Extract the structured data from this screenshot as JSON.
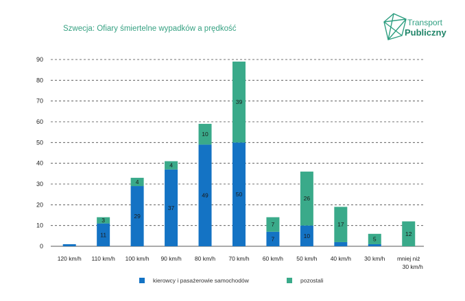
{
  "title": "Szwecja: Ofiary śmiertelne wypadków a prędkość",
  "logo": {
    "line1": "Transport",
    "line2": "Publiczny"
  },
  "colors": {
    "series1": "#1473c4",
    "series2": "#3aaa8a",
    "title": "#36a182"
  },
  "chart_data": {
    "type": "bar",
    "stacked": true,
    "categories": [
      "120 km/h",
      "110 km/h",
      "100 km/h",
      "90 km/h",
      "80 km/h",
      "70 km/h",
      "60 km/h",
      "50 km/h",
      "40 km/h",
      "30 km/h",
      "mniej niż 30 km/h"
    ],
    "series": [
      {
        "name": "kierowcy i pasażerowie samochodów",
        "values": [
          1,
          11,
          29,
          37,
          49,
          50,
          7,
          10,
          2,
          1,
          0
        ],
        "labels": [
          "",
          "11",
          "29",
          "37",
          "49",
          "50",
          "7",
          "10",
          "",
          "",
          ""
        ]
      },
      {
        "name": "pozostali",
        "values": [
          0,
          3,
          4,
          4,
          10,
          39,
          7,
          26,
          17,
          5,
          12
        ],
        "labels": [
          "",
          "3",
          "4",
          "4",
          "10",
          "39",
          "7",
          "26",
          "17",
          "5",
          "12"
        ]
      }
    ],
    "yticks": [
      "0",
      "10",
      "20",
      "30",
      "40",
      "50",
      "60",
      "70",
      "80",
      "90"
    ],
    "ylim": [
      0,
      90
    ],
    "grid": true,
    "legend_position": "bottom"
  }
}
